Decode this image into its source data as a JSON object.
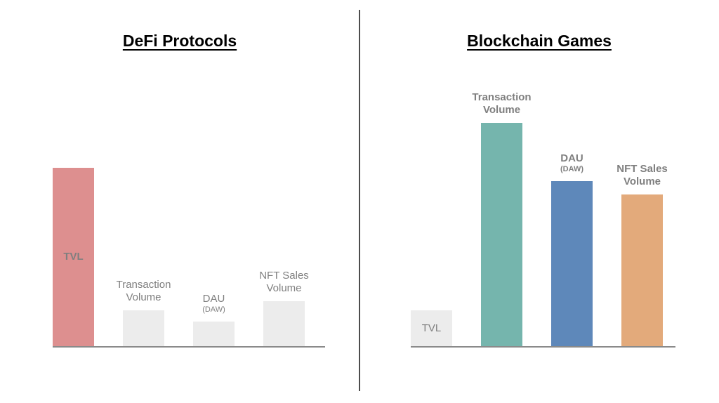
{
  "page": {
    "background": "#ffffff",
    "divider_color": "#4d4d4d",
    "baseline_color": "#8a8a8a",
    "label_color": "#7f7f7f",
    "title_color": "#000000"
  },
  "chart_data": [
    {
      "type": "bar",
      "title": "DeFi Protocols",
      "categories": [
        "TVL",
        "Transaction Volume",
        "DAU (DAW)",
        "NFT Sales Volume"
      ],
      "values": [
        80,
        16,
        11,
        20
      ],
      "ylim": [
        0,
        100
      ],
      "grid": false,
      "legend": "none",
      "axis_note": "no numeric axis shown; values are relative magnitudes",
      "bars": [
        {
          "id": "tvl",
          "label": "TVL",
          "value": 80,
          "color": "#dd8f8f",
          "label_inside": true,
          "bold": true
        },
        {
          "id": "transaction-volume",
          "label": "Transaction\nVolume",
          "value": 16,
          "color": "#ececec",
          "label_inside": false,
          "bold": false
        },
        {
          "id": "dau",
          "label": "DAU",
          "sublabel": "(DAW)",
          "value": 11,
          "color": "#ececec",
          "label_inside": false,
          "bold": false
        },
        {
          "id": "nft-sales-volume",
          "label": "NFT Sales\nVolume",
          "value": 20,
          "color": "#ececec",
          "label_inside": false,
          "bold": false
        }
      ]
    },
    {
      "type": "bar",
      "title": "Blockchain Games",
      "categories": [
        "TVL",
        "Transaction Volume",
        "DAU (DAW)",
        "NFT Sales Volume"
      ],
      "values": [
        16,
        100,
        74,
        68
      ],
      "ylim": [
        0,
        100
      ],
      "grid": false,
      "legend": "none",
      "axis_note": "no numeric axis shown; values are relative magnitudes",
      "bars": [
        {
          "id": "tvl",
          "label": "TVL",
          "value": 16,
          "color": "#ececec",
          "label_inside": true,
          "bold": false
        },
        {
          "id": "transaction-volume",
          "label": "Transaction\nVolume",
          "value": 100,
          "color": "#75b5ad",
          "label_inside": false,
          "bold": true
        },
        {
          "id": "dau",
          "label": "DAU",
          "sublabel": "(DAW)",
          "value": 74,
          "color": "#5e88ba",
          "label_inside": false,
          "bold": true
        },
        {
          "id": "nft-sales-volume",
          "label": "NFT Sales\nVolume",
          "value": 68,
          "color": "#e3aa7b",
          "label_inside": false,
          "bold": true
        }
      ]
    }
  ]
}
